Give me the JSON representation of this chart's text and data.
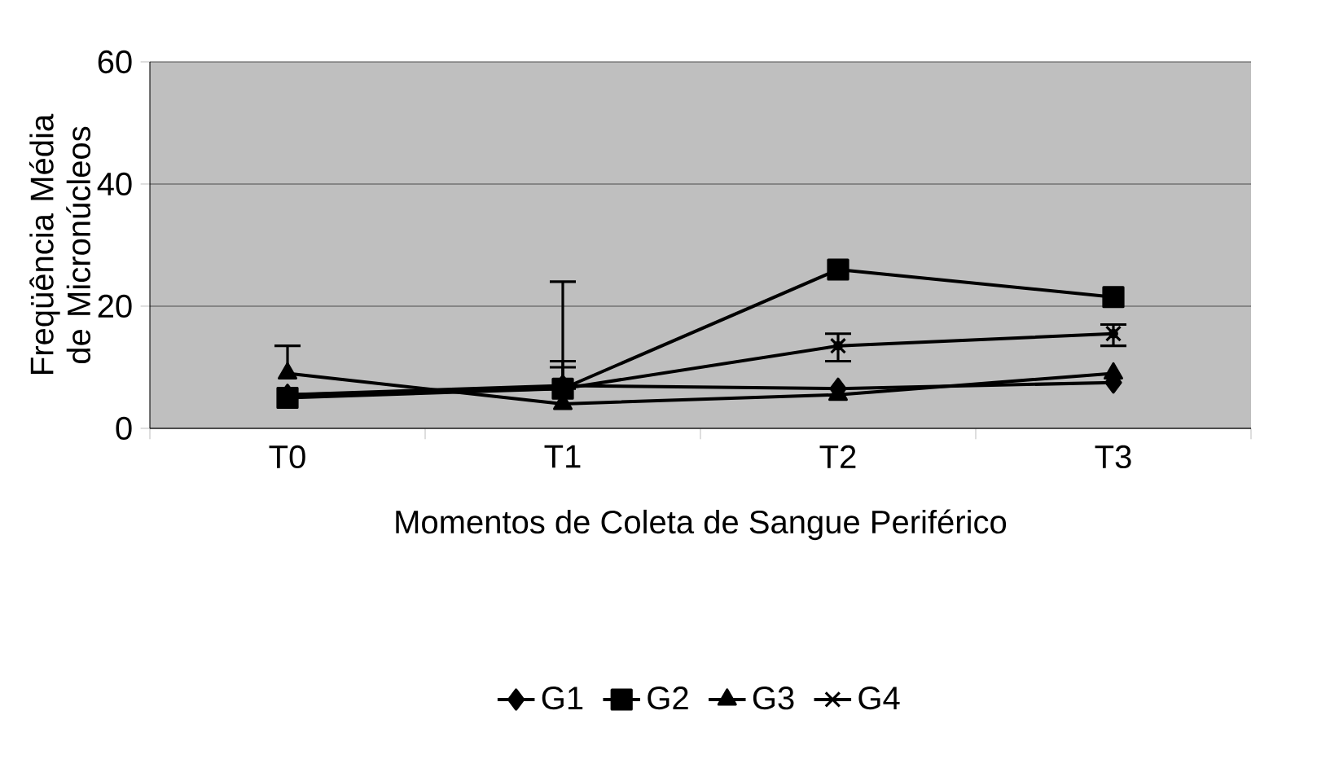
{
  "chart_data": {
    "type": "line",
    "xlabel": "Momentos de Coleta de Sangue Periférico",
    "ylabel": "Freqüência Média de Micronúcleos",
    "categories": [
      "T0",
      "T1",
      "T2",
      "T3"
    ],
    "series": [
      {
        "name": "G1",
        "color": "#000000",
        "marker": "diamond",
        "values": [
          5.5,
          7,
          6.5,
          7.5
        ],
        "errors": [
          null,
          [
            7,
            10
          ],
          null,
          null
        ]
      },
      {
        "name": "G2",
        "color": "#000000",
        "marker": "square",
        "values": [
          5,
          6.5,
          26,
          21.5
        ],
        "errors": [
          null,
          [
            6.5,
            11
          ],
          null,
          null
        ]
      },
      {
        "name": "G3",
        "color": "#000000",
        "marker": "triangle",
        "values": [
          9,
          4,
          5.5,
          9
        ],
        "errors": [
          [
            9,
            13.5
          ],
          null,
          null,
          null
        ]
      },
      {
        "name": "G4",
        "color": "#000000",
        "marker": "cross",
        "values": [
          5.5,
          6.5,
          13.5,
          15.5
        ],
        "errors": [
          null,
          [
            6.5,
            24
          ],
          [
            11,
            15.5
          ],
          [
            13.5,
            17
          ]
        ]
      }
    ],
    "ylim": [
      0,
      60
    ],
    "yticks": [
      0,
      20,
      40,
      60
    ],
    "grid": "y",
    "legend": "bottom"
  }
}
